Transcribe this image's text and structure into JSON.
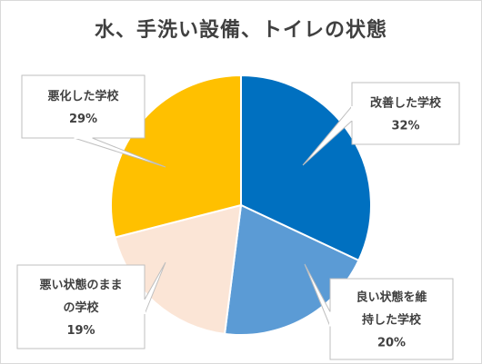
{
  "chart_data": {
    "type": "pie",
    "title": "水、手洗い設備、トイレの状態",
    "start_angle_deg": 0,
    "direction": "clockwise",
    "slices": [
      {
        "label_lines": [
          "改善した学校"
        ],
        "value": 32,
        "value_label": "32%",
        "color": "#0070C0"
      },
      {
        "label_lines": [
          "良い状態を維",
          "持した学校"
        ],
        "value": 20,
        "value_label": "20%",
        "color": "#5B9BD5"
      },
      {
        "label_lines": [
          "悪い状態のまま",
          "の学校"
        ],
        "value": 19,
        "value_label": "19%",
        "color": "#FBE5D6"
      },
      {
        "label_lines": [
          "悪化した学校"
        ],
        "value": 29,
        "value_label": "29%",
        "color": "#FFC000"
      }
    ]
  }
}
